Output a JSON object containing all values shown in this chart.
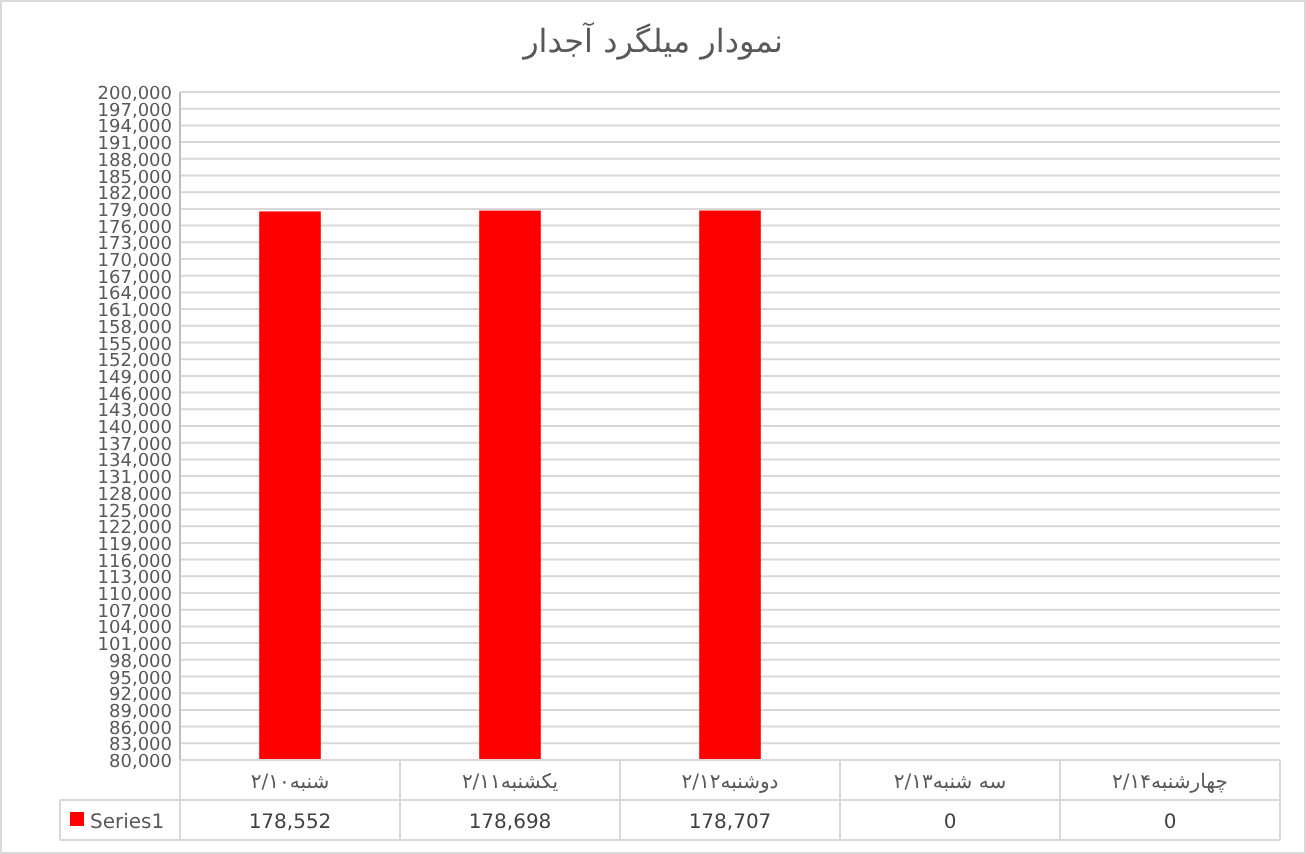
{
  "chart_data": {
    "type": "bar",
    "title": "نمودار میلگرد آجدار",
    "categories": [
      "شنبه۲/۱۰",
      "یکشنبه۲/۱۱",
      "دوشنبه۲/۱۲",
      "سه شنبه۲/۱۳",
      "چهارشنبه۲/۱۴"
    ],
    "series": [
      {
        "name": "Series1",
        "color": "#ff0000",
        "values": [
          178552,
          178698,
          178707,
          null,
          null
        ],
        "value_labels": [
          "178,552",
          "178,698",
          "178,707",
          "0",
          "0"
        ]
      }
    ],
    "ylim": [
      80000,
      200000
    ],
    "yticks": [
      {
        "value": 80000,
        "label": "80,000"
      },
      {
        "value": 83000,
        "label": "83,000"
      },
      {
        "value": 86000,
        "label": "86,000"
      },
      {
        "value": 89000,
        "label": "89,000"
      },
      {
        "value": 92000,
        "label": "92,000"
      },
      {
        "value": 95000,
        "label": "95,000"
      },
      {
        "value": 98000,
        "label": "98,000"
      },
      {
        "value": 101000,
        "label": "101,000"
      },
      {
        "value": 104000,
        "label": "104,000"
      },
      {
        "value": 107000,
        "label": "107,000"
      },
      {
        "value": 110000,
        "label": "110,000"
      },
      {
        "value": 113000,
        "label": "113,000"
      },
      {
        "value": 116000,
        "label": "116,000"
      },
      {
        "value": 119000,
        "label": "119,000"
      },
      {
        "value": 122000,
        "label": "122,000"
      },
      {
        "value": 125000,
        "label": "125,000"
      },
      {
        "value": 128000,
        "label": "128,000"
      },
      {
        "value": 131000,
        "label": "131,000"
      },
      {
        "value": 134000,
        "label": "134,000"
      },
      {
        "value": 137000,
        "label": "137,000"
      },
      {
        "value": 140000,
        "label": "140,000"
      },
      {
        "value": 143000,
        "label": "143,000"
      },
      {
        "value": 146000,
        "label": "146,000"
      },
      {
        "value": 149000,
        "label": "149,000"
      },
      {
        "value": 152000,
        "label": "152,000"
      },
      {
        "value": 155000,
        "label": "155,000"
      },
      {
        "value": 158000,
        "label": "158,000"
      },
      {
        "value": 161000,
        "label": "161,000"
      },
      {
        "value": 164000,
        "label": "164,000"
      },
      {
        "value": 167000,
        "label": "167,000"
      },
      {
        "value": 170000,
        "label": "170,000"
      },
      {
        "value": 173000,
        "label": "173,000"
      },
      {
        "value": 176000,
        "label": "176,000"
      },
      {
        "value": 179000,
        "label": "179,000"
      },
      {
        "value": 182000,
        "label": "182,000"
      },
      {
        "value": 185000,
        "label": "185,000"
      },
      {
        "value": 188000,
        "label": "188,000"
      },
      {
        "value": 191000,
        "label": "191,000"
      },
      {
        "value": 194000,
        "label": "194,000"
      },
      {
        "value": 197000,
        "label": "197,000"
      },
      {
        "value": 200000,
        "label": "200,000"
      }
    ],
    "grid": "y",
    "legend": "bottom"
  }
}
